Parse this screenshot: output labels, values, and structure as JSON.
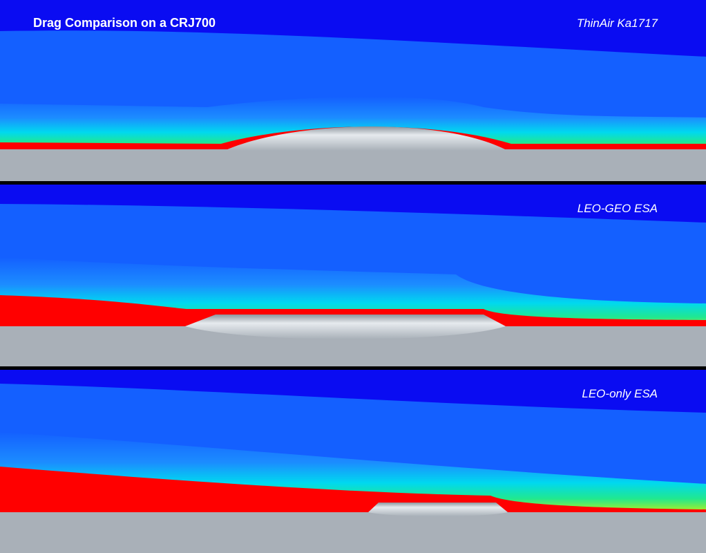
{
  "title": "Drag  Comparison on a CRJ700",
  "panels": [
    {
      "label": "ThinAir Ka1717"
    },
    {
      "label": "LEO-GEO ESA"
    },
    {
      "label": "LEO-only ESA"
    }
  ]
}
